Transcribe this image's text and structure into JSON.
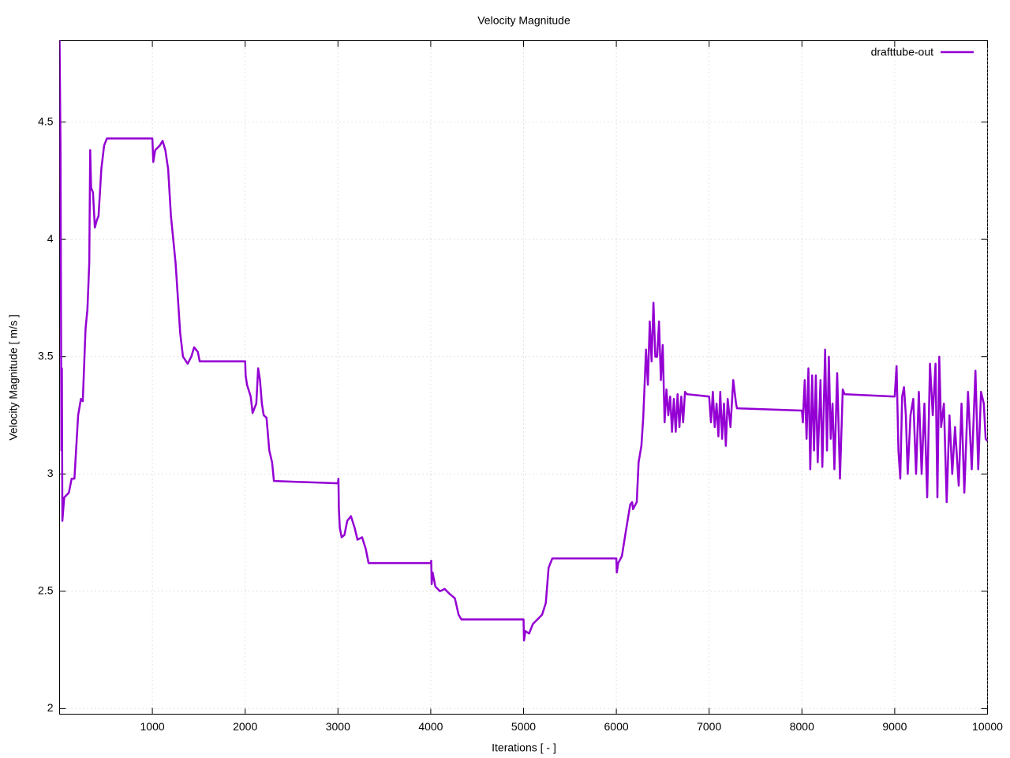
{
  "chart_data": {
    "type": "line",
    "title": "Velocity Magnitude",
    "x_label": "Iterations [ - ]",
    "y_label": "Velocity Magnitude [ m/s ]",
    "xlim": [
      0,
      10000
    ],
    "ylim": [
      1.976,
      4.847
    ],
    "xticks": [
      1000,
      2000,
      3000,
      4000,
      5000,
      6000,
      7000,
      8000,
      9000,
      10000
    ],
    "yticks": [
      2,
      2.5,
      3,
      3.5,
      4,
      4.5
    ],
    "grid": true,
    "legend": "top-right",
    "series": [
      {
        "name": "drafttube-out",
        "color": "#9400d3",
        "x": [
          0,
          10,
          20,
          25,
          30,
          50,
          100,
          130,
          160,
          200,
          230,
          250,
          280,
          300,
          320,
          330,
          340,
          360,
          380,
          400,
          420,
          450,
          480,
          510,
          1000,
          1010,
          1030,
          1080,
          1110,
          1140,
          1170,
          1200,
          1250,
          1300,
          1330,
          1380,
          1420,
          1450,
          1490,
          1510,
          2000,
          2005,
          2020,
          2060,
          2080,
          2100,
          2120,
          2140,
          2160,
          2180,
          2200,
          2230,
          2260,
          2290,
          2310,
          3000,
          3005,
          3010,
          3020,
          3040,
          3070,
          3100,
          3140,
          3180,
          3210,
          3260,
          3300,
          3330,
          4000,
          4005,
          4010,
          4020,
          4050,
          4100,
          4150,
          4200,
          4260,
          4300,
          4330,
          5000,
          5005,
          5020,
          5060,
          5100,
          5150,
          5200,
          5240,
          5270,
          5310,
          6000,
          6005,
          6020,
          6060,
          6100,
          6150,
          6170,
          6180,
          6220,
          6240,
          6270,
          6290,
          6320,
          6340,
          6360,
          6380,
          6400,
          6420,
          6440,
          6460,
          6480,
          6500,
          6520,
          6540,
          6560,
          6580,
          6600,
          6620,
          6640,
          6660,
          6680,
          6700,
          6720,
          6740,
          6760,
          7000,
          7020,
          7040,
          7060,
          7080,
          7100,
          7120,
          7140,
          7160,
          7180,
          7200,
          7230,
          7260,
          7290,
          7300,
          8000,
          8010,
          8030,
          8050,
          8070,
          8090,
          8110,
          8130,
          8150,
          8170,
          8200,
          8220,
          8250,
          8270,
          8290,
          8310,
          8330,
          8350,
          8380,
          8410,
          8440,
          8460,
          9000,
          9020,
          9040,
          9060,
          9080,
          9100,
          9120,
          9140,
          9170,
          9200,
          9230,
          9260,
          9290,
          9320,
          9350,
          9380,
          9410,
          9440,
          9460,
          9480,
          9500,
          9530,
          9560,
          9590,
          9620,
          9650,
          9690,
          9720,
          9750,
          9790,
          9830,
          9870,
          9900,
          9930,
          9960,
          9980,
          10000
        ],
        "values": [
          4.85,
          4.4,
          3.1,
          3.45,
          2.8,
          2.9,
          2.92,
          2.98,
          2.98,
          3.25,
          3.32,
          3.31,
          3.62,
          3.7,
          3.9,
          4.38,
          4.22,
          4.2,
          4.05,
          4.08,
          4.1,
          4.3,
          4.4,
          4.43,
          4.43,
          4.33,
          4.38,
          4.4,
          4.42,
          4.38,
          4.3,
          4.1,
          3.9,
          3.6,
          3.5,
          3.47,
          3.5,
          3.54,
          3.52,
          3.48,
          3.48,
          3.42,
          3.38,
          3.33,
          3.26,
          3.28,
          3.3,
          3.45,
          3.4,
          3.3,
          3.25,
          3.24,
          3.1,
          3.05,
          2.97,
          2.96,
          2.98,
          2.85,
          2.77,
          2.73,
          2.74,
          2.8,
          2.82,
          2.77,
          2.72,
          2.73,
          2.68,
          2.62,
          2.62,
          2.63,
          2.53,
          2.58,
          2.52,
          2.5,
          2.51,
          2.49,
          2.47,
          2.4,
          2.38,
          2.38,
          2.29,
          2.33,
          2.32,
          2.36,
          2.38,
          2.4,
          2.45,
          2.6,
          2.64,
          2.64,
          2.58,
          2.62,
          2.65,
          2.75,
          2.87,
          2.88,
          2.85,
          2.88,
          3.05,
          3.12,
          3.24,
          3.53,
          3.38,
          3.65,
          3.48,
          3.73,
          3.5,
          3.5,
          3.65,
          3.4,
          3.55,
          3.22,
          3.36,
          3.25,
          3.33,
          3.18,
          3.32,
          3.18,
          3.34,
          3.2,
          3.33,
          3.22,
          3.35,
          3.34,
          3.33,
          3.22,
          3.35,
          3.2,
          3.3,
          3.16,
          3.35,
          3.15,
          3.3,
          3.12,
          3.32,
          3.2,
          3.4,
          3.3,
          3.28,
          3.27,
          3.22,
          3.4,
          3.15,
          3.45,
          3.02,
          3.42,
          3.1,
          3.42,
          3.05,
          3.4,
          3.03,
          3.53,
          3.1,
          3.5,
          3.15,
          3.3,
          3.02,
          3.43,
          2.98,
          3.36,
          3.34,
          3.33,
          3.46,
          3.1,
          2.98,
          3.33,
          3.37,
          3.25,
          3.0,
          3.25,
          3.32,
          3.0,
          3.35,
          3.0,
          3.3,
          2.9,
          3.47,
          3.25,
          3.47,
          2.9,
          3.5,
          3.2,
          3.3,
          2.88,
          3.25,
          3.0,
          3.2,
          2.95,
          3.3,
          2.92,
          3.35,
          3.02,
          3.44,
          3.02,
          3.35,
          3.3,
          3.15,
          3.14
        ]
      }
    ]
  }
}
